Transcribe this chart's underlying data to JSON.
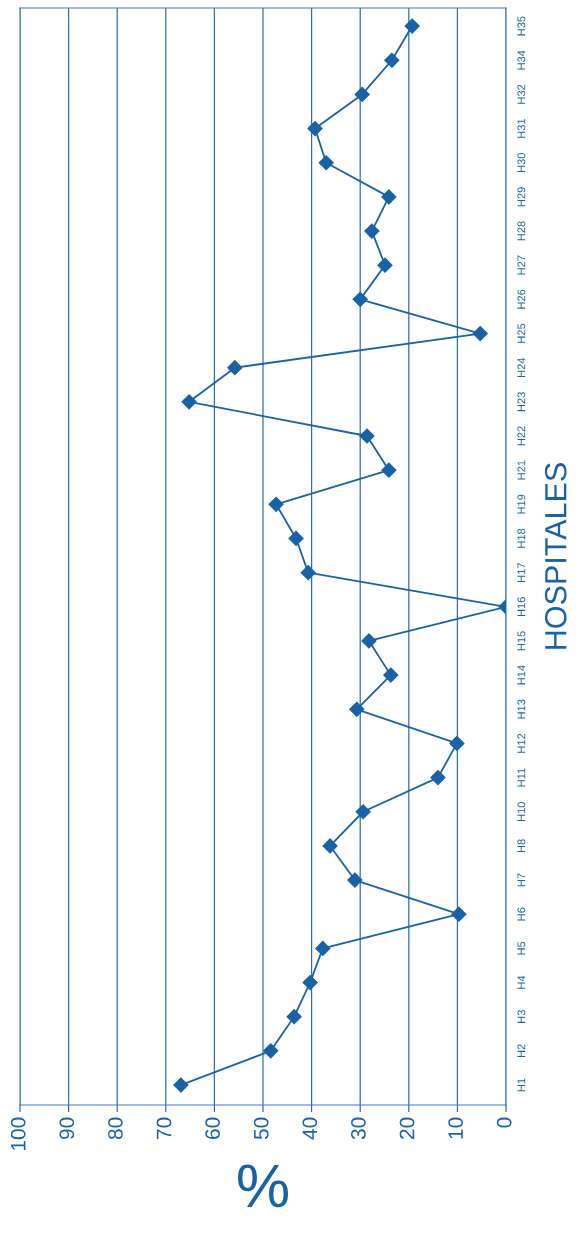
{
  "chart_data": {
    "type": "line",
    "orientation": "horizontal",
    "xlabel": "%",
    "ylabel": "HOSPITALES",
    "categories": [
      "H35",
      "H34",
      "H32",
      "H31",
      "H30",
      "H29",
      "H28",
      "H27",
      "H26",
      "H25",
      "H24",
      "H23",
      "H22",
      "H21",
      "H19",
      "H18",
      "H17",
      "H16",
      "H15",
      "H14",
      "H13",
      "H12",
      "H11",
      "H10",
      "H8",
      "H7",
      "H6",
      "H5",
      "H4",
      "H3",
      "H2",
      "H1"
    ],
    "series": [
      {
        "color": "#1a62a6",
        "values": [
          19.3,
          23.5,
          29.6,
          39.3,
          37.0,
          24.1,
          27.6,
          24.9,
          30.0,
          5.3,
          55.8,
          65.2,
          28.6,
          24.1,
          47.3,
          43.2,
          40.7,
          0,
          28.2,
          23.7,
          30.7,
          10.1,
          14.0,
          29.4,
          36.2,
          31.1,
          9.7,
          37.7,
          40.3,
          43.6,
          48.4,
          66.9
        ]
      }
    ],
    "xlim": [
      100,
      0
    ],
    "xticks": [
      100,
      90,
      80,
      70,
      60,
      50,
      40,
      30,
      20,
      10,
      0
    ],
    "grid": "x",
    "marker": "diamond",
    "line_style": "solid",
    "legend": false
  }
}
